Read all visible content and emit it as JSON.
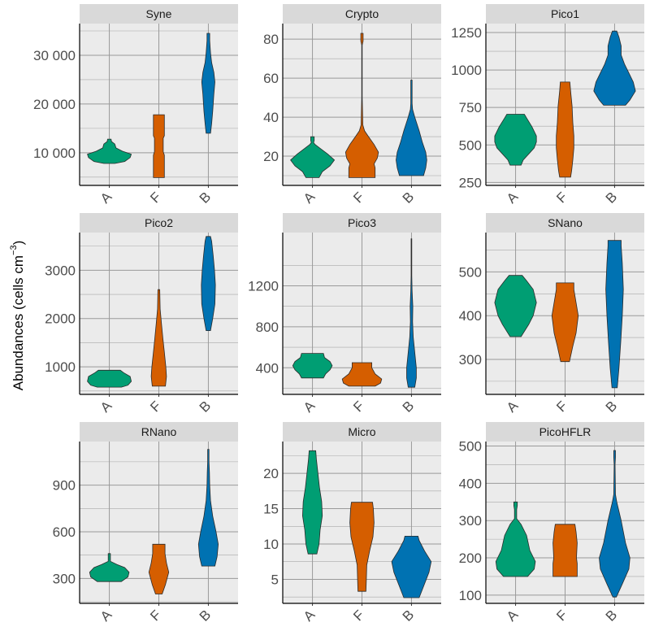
{
  "chart_data": {
    "type": "violin",
    "ylabel": "Abundances (cells cm^-3)",
    "ylabel_main": "Abundances (cells  cm",
    "ylabel_sup": "−3",
    "ylabel_close": ")",
    "categories": [
      "A",
      "F",
      "B"
    ],
    "colors": {
      "A": "#009E73",
      "F": "#D55E00",
      "B": "#0072B2"
    },
    "grid": true,
    "legend": "none",
    "panels": [
      {
        "title": "Syne",
        "ylim": [
          3300,
          36500
        ],
        "ticks": [
          10000,
          20000,
          30000
        ],
        "tick_labels": [
          "10 000",
          "20 000",
          "30 000"
        ],
        "violins": {
          "A": [
            [
              7800,
              0.25
            ],
            [
              8200,
              0.7
            ],
            [
              9000,
              0.95
            ],
            [
              9700,
              1.0
            ],
            [
              10300,
              0.6
            ],
            [
              11000,
              0.3
            ],
            [
              11800,
              0.25
            ],
            [
              12300,
              0.1
            ],
            [
              12800,
              0.08
            ]
          ],
          "F": [
            [
              4900,
              0.25
            ],
            [
              9500,
              0.25
            ],
            [
              10200,
              0.2
            ],
            [
              13000,
              0.2
            ],
            [
              13500,
              0.25
            ],
            [
              17800,
              0.25
            ]
          ],
          "B": [
            [
              14000,
              0.1
            ],
            [
              16000,
              0.15
            ],
            [
              18500,
              0.2
            ],
            [
              22000,
              0.25
            ],
            [
              24500,
              0.3
            ],
            [
              26500,
              0.25
            ],
            [
              28500,
              0.15
            ],
            [
              30500,
              0.1
            ],
            [
              33000,
              0.06
            ],
            [
              34500,
              0.06
            ]
          ]
        }
      },
      {
        "title": "Crypto",
        "ylim": [
          5,
          88
        ],
        "ticks": [
          20,
          40,
          60,
          80
        ],
        "tick_labels": [
          "20",
          "40",
          "60",
          "80"
        ],
        "violins": {
          "A": [
            [
              9,
              0.3
            ],
            [
              12,
              0.45
            ],
            [
              15,
              0.8
            ],
            [
              18,
              1.0
            ],
            [
              21,
              0.7
            ],
            [
              24,
              0.35
            ],
            [
              26,
              0.12
            ],
            [
              27,
              0.05
            ],
            [
              28,
              0.08
            ],
            [
              30,
              0.08
            ]
          ],
          "F": [
            [
              9,
              0.6
            ],
            [
              14,
              0.6
            ],
            [
              16,
              0.55
            ],
            [
              19,
              0.7
            ],
            [
              22,
              0.75
            ],
            [
              26,
              0.55
            ],
            [
              30,
              0.3
            ],
            [
              33,
              0.12
            ],
            [
              36,
              0.04
            ],
            [
              50,
              0.01
            ],
            [
              77,
              0.01
            ],
            [
              79,
              0.05
            ],
            [
              83,
              0.05
            ]
          ],
          "B": [
            [
              10,
              0.55
            ],
            [
              14,
              0.65
            ],
            [
              18,
              0.7
            ],
            [
              22,
              0.65
            ],
            [
              27,
              0.5
            ],
            [
              33,
              0.35
            ],
            [
              40,
              0.15
            ],
            [
              44,
              0.05
            ],
            [
              47,
              0.03
            ],
            [
              55,
              0.03
            ],
            [
              59,
              0.03
            ]
          ]
        }
      },
      {
        "title": "Pico1",
        "ylim": [
          230,
          1310
        ],
        "ticks": [
          250,
          500,
          750,
          1000,
          1250
        ],
        "tick_labels": [
          "250",
          "500",
          "750",
          "1000",
          "1250"
        ],
        "violins": {
          "A": [
            [
              365,
              0.25
            ],
            [
              400,
              0.35
            ],
            [
              440,
              0.6
            ],
            [
              480,
              0.85
            ],
            [
              520,
              0.95
            ],
            [
              560,
              0.95
            ],
            [
              620,
              0.75
            ],
            [
              680,
              0.5
            ],
            [
              705,
              0.4
            ]
          ],
          "F": [
            [
              285,
              0.25
            ],
            [
              330,
              0.3
            ],
            [
              400,
              0.35
            ],
            [
              480,
              0.4
            ],
            [
              560,
              0.4
            ],
            [
              650,
              0.35
            ],
            [
              760,
              0.32
            ],
            [
              860,
              0.25
            ],
            [
              920,
              0.22
            ]
          ],
          "B": [
            [
              765,
              0.5
            ],
            [
              800,
              0.7
            ],
            [
              860,
              0.95
            ],
            [
              920,
              0.85
            ],
            [
              980,
              0.65
            ],
            [
              1040,
              0.45
            ],
            [
              1100,
              0.3
            ],
            [
              1160,
              0.3
            ],
            [
              1220,
              0.2
            ],
            [
              1260,
              0.1
            ]
          ]
        }
      },
      {
        "title": "Pico2",
        "ylim": [
          430,
          3780
        ],
        "ticks": [
          1000,
          2000,
          3000
        ],
        "tick_labels": [
          "1000",
          "2000",
          "3000"
        ],
        "violins": {
          "A": [
            [
              580,
              0.55
            ],
            [
              620,
              0.85
            ],
            [
              700,
              1.0
            ],
            [
              800,
              0.95
            ],
            [
              880,
              0.65
            ],
            [
              930,
              0.5
            ]
          ],
          "F": [
            [
              600,
              0.3
            ],
            [
              800,
              0.35
            ],
            [
              1000,
              0.32
            ],
            [
              1300,
              0.25
            ],
            [
              1600,
              0.18
            ],
            [
              1900,
              0.12
            ],
            [
              2200,
              0.06
            ],
            [
              2600,
              0.04
            ]
          ],
          "B": [
            [
              1750,
              0.1
            ],
            [
              2000,
              0.2
            ],
            [
              2300,
              0.3
            ],
            [
              2700,
              0.32
            ],
            [
              3000,
              0.28
            ],
            [
              3300,
              0.22
            ],
            [
              3600,
              0.15
            ],
            [
              3700,
              0.1
            ]
          ]
        }
      },
      {
        "title": "Pico3",
        "ylim": [
          140,
          1720
        ],
        "ticks": [
          400,
          800,
          1200
        ],
        "tick_labels": [
          "400",
          "800",
          "1200"
        ],
        "violins": {
          "A": [
            [
              300,
              0.5
            ],
            [
              340,
              0.6
            ],
            [
              380,
              0.8
            ],
            [
              420,
              0.9
            ],
            [
              460,
              0.8
            ],
            [
              500,
              0.55
            ],
            [
              540,
              0.5
            ]
          ],
          "F": [
            [
              220,
              0.6
            ],
            [
              250,
              0.85
            ],
            [
              290,
              0.9
            ],
            [
              340,
              0.6
            ],
            [
              400,
              0.45
            ],
            [
              450,
              0.45
            ]
          ],
          "B": [
            [
              210,
              0.15
            ],
            [
              300,
              0.22
            ],
            [
              400,
              0.22
            ],
            [
              550,
              0.15
            ],
            [
              700,
              0.08
            ],
            [
              850,
              0.05
            ],
            [
              1000,
              0.06
            ],
            [
              1150,
              0.03
            ],
            [
              1300,
              0.015
            ],
            [
              1660,
              0.015
            ]
          ]
        }
      },
      {
        "title": "SNano",
        "ylim": [
          220,
          590
        ],
        "ticks": [
          300,
          400,
          500
        ],
        "tick_labels": [
          "300",
          "400",
          "500"
        ],
        "violins": {
          "A": [
            [
              352,
              0.25
            ],
            [
              380,
              0.6
            ],
            [
              400,
              0.8
            ],
            [
              430,
              0.95
            ],
            [
              460,
              0.8
            ],
            [
              480,
              0.5
            ],
            [
              492,
              0.3
            ]
          ],
          "F": [
            [
              295,
              0.2
            ],
            [
              330,
              0.35
            ],
            [
              360,
              0.5
            ],
            [
              400,
              0.6
            ],
            [
              430,
              0.5
            ],
            [
              460,
              0.4
            ],
            [
              475,
              0.4
            ]
          ],
          "B": [
            [
              235,
              0.12
            ],
            [
              280,
              0.2
            ],
            [
              340,
              0.28
            ],
            [
              400,
              0.35
            ],
            [
              460,
              0.4
            ],
            [
              520,
              0.35
            ],
            [
              560,
              0.3
            ],
            [
              572,
              0.3
            ]
          ]
        }
      },
      {
        "title": "RNano",
        "ylim": [
          140,
          1180
        ],
        "ticks": [
          300,
          600,
          900
        ],
        "tick_labels": [
          "300",
          "600",
          "900"
        ],
        "violins": {
          "A": [
            [
              280,
              0.55
            ],
            [
              310,
              0.85
            ],
            [
              340,
              0.9
            ],
            [
              370,
              0.7
            ],
            [
              390,
              0.35
            ],
            [
              410,
              0.05
            ],
            [
              430,
              0.05
            ],
            [
              460,
              0.05
            ]
          ],
          "F": [
            [
              200,
              0.15
            ],
            [
              260,
              0.3
            ],
            [
              340,
              0.45
            ],
            [
              400,
              0.35
            ],
            [
              460,
              0.28
            ],
            [
              520,
              0.28
            ]
          ],
          "B": [
            [
              380,
              0.3
            ],
            [
              440,
              0.4
            ],
            [
              520,
              0.45
            ],
            [
              600,
              0.35
            ],
            [
              700,
              0.2
            ],
            [
              800,
              0.1
            ],
            [
              900,
              0.06
            ],
            [
              980,
              0.05
            ],
            [
              1050,
              0.03
            ],
            [
              1130,
              0.03
            ]
          ]
        }
      },
      {
        "title": "Micro",
        "ylim": [
          1.6,
          24.5
        ],
        "ticks": [
          5,
          10,
          15,
          20
        ],
        "tick_labels": [
          "5",
          "10",
          "15",
          "20"
        ],
        "violins": {
          "A": [
            [
              8.6,
              0.2
            ],
            [
              10,
              0.3
            ],
            [
              12,
              0.35
            ],
            [
              14,
              0.45
            ],
            [
              16,
              0.42
            ],
            [
              18,
              0.32
            ],
            [
              20,
              0.25
            ],
            [
              22,
              0.18
            ],
            [
              23.2,
              0.15
            ]
          ],
          "F": [
            [
              3.3,
              0.18
            ],
            [
              5,
              0.2
            ],
            [
              7,
              0.22
            ],
            [
              9,
              0.35
            ],
            [
              11,
              0.5
            ],
            [
              13,
              0.55
            ],
            [
              15,
              0.52
            ],
            [
              15.9,
              0.48
            ]
          ],
          "B": [
            [
              2.4,
              0.35
            ],
            [
              4,
              0.55
            ],
            [
              6,
              0.8
            ],
            [
              7.5,
              0.9
            ],
            [
              9,
              0.6
            ],
            [
              10.5,
              0.35
            ],
            [
              11.1,
              0.3
            ]
          ]
        }
      },
      {
        "title": "PicoHFLR",
        "ylim": [
          78,
          512
        ],
        "ticks": [
          100,
          200,
          300,
          400,
          500
        ],
        "tick_labels": [
          "100",
          "200",
          "300",
          "400",
          "500"
        ],
        "violins": {
          "A": [
            [
              150,
              0.55
            ],
            [
              170,
              0.85
            ],
            [
              190,
              0.9
            ],
            [
              220,
              0.65
            ],
            [
              260,
              0.5
            ],
            [
              290,
              0.25
            ],
            [
              305,
              0.05
            ],
            [
              330,
              0.05
            ],
            [
              340,
              0.08
            ],
            [
              350,
              0.08
            ]
          ],
          "F": [
            [
              150,
              0.55
            ],
            [
              185,
              0.55
            ],
            [
              200,
              0.52
            ],
            [
              240,
              0.55
            ],
            [
              270,
              0.5
            ],
            [
              290,
              0.45
            ]
          ],
          "B": [
            [
              95,
              0.08
            ],
            [
              130,
              0.35
            ],
            [
              170,
              0.65
            ],
            [
              200,
              0.7
            ],
            [
              240,
              0.5
            ],
            [
              300,
              0.3
            ],
            [
              350,
              0.1
            ],
            [
              370,
              0.04
            ],
            [
              450,
              0.02
            ],
            [
              470,
              0.04
            ],
            [
              488,
              0.04
            ]
          ]
        }
      }
    ]
  }
}
